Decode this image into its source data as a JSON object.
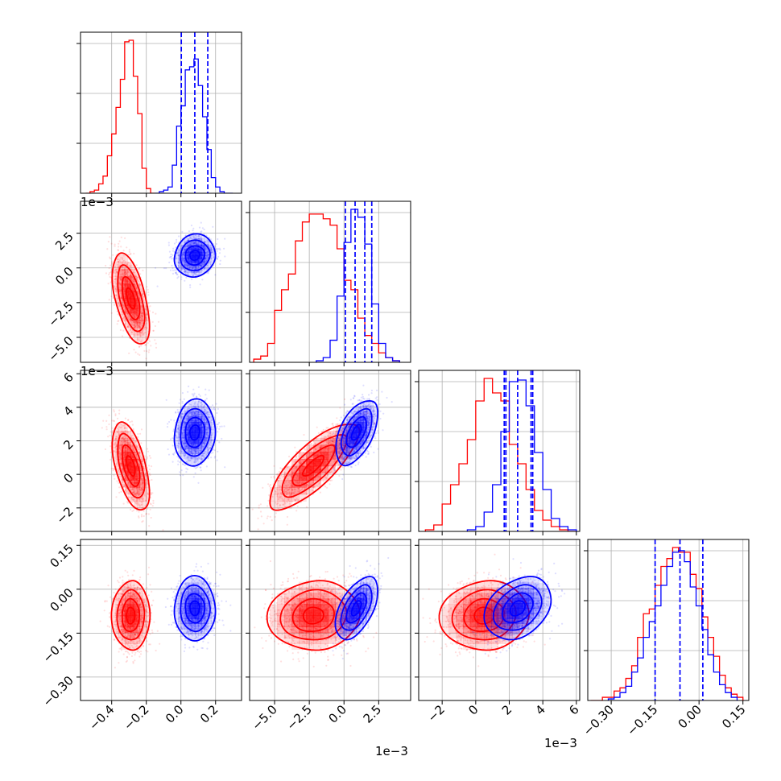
{
  "chart_data": {
    "type": "corner",
    "title": "",
    "parameters": [
      {
        "name": "",
        "range": [
          -0.58,
          0.35
        ],
        "ticks": [
          -0.4,
          -0.2,
          0.0,
          0.2
        ],
        "tick_labels": [
          "−0.4",
          "−0.2",
          "0.0",
          "0.2"
        ],
        "offset_text": ""
      },
      {
        "name": "",
        "range": [
          -0.0068,
          0.0048
        ],
        "ticks": [
          -0.005,
          -0.0025,
          0.0,
          0.0025
        ],
        "tick_labels": [
          "−5.0",
          "−2.5",
          "0.0",
          "2.5"
        ],
        "offset_text": "1e−3"
      },
      {
        "name": "",
        "range": [
          -0.0034,
          0.0062
        ],
        "ticks": [
          -0.002,
          0.0,
          0.002,
          0.004,
          0.006
        ],
        "tick_labels": [
          "−2",
          "0",
          "2",
          "4",
          "6"
        ],
        "offset_text": "1e−3"
      },
      {
        "name": "",
        "range": [
          -0.38,
          0.17
        ],
        "ticks": [
          -0.3,
          -0.15,
          0.0,
          0.15
        ],
        "tick_labels": [
          "−0.30",
          "−0.15",
          "0.00",
          "0.15"
        ],
        "offset_text": ""
      }
    ],
    "series": [
      {
        "name": "",
        "color": "#ff0000",
        "mean": [
          -0.29,
          -0.0022,
          0.0005,
          -0.09
        ],
        "std": [
          0.05,
          0.0015,
          0.0012,
          0.055
        ],
        "correlation": {
          "0-1": -0.55,
          "0-2": -0.55,
          "0-3": 0.0,
          "1-2": 0.8,
          "1-3": 0.05,
          "2-3": 0.05
        },
        "histograms": [
          {
            "edges": [
              -0.55,
              -0.525,
              -0.5,
              -0.475,
              -0.45,
              -0.425,
              -0.4,
              -0.375,
              -0.35,
              -0.325,
              -0.3,
              -0.275,
              -0.25,
              -0.225,
              -0.2,
              -0.175,
              -0.15
            ],
            "counts": [
              0,
              1,
              2,
              6,
              11,
              24,
              38,
              55,
              73,
              97,
              98,
              75,
              51,
              16,
              3,
              0
            ]
          },
          {
            "edges": [
              -0.0065,
              -0.006,
              -0.0055,
              -0.005,
              -0.0045,
              -0.004,
              -0.0035,
              -0.003,
              -0.0025,
              -0.002,
              -0.0015,
              -0.001,
              -0.0005,
              0.0,
              0.0005,
              0.001,
              0.0015,
              0.002,
              0.0025,
              0.003,
              0.0035,
              0.004
            ],
            "counts": [
              2,
              4,
              12,
              33,
              46,
              56,
              77,
              89,
              94,
              94,
              91,
              87,
              72,
              52,
              46,
              28,
              17,
              12,
              6,
              3,
              1
            ]
          },
          {
            "edges": [
              -0.003,
              -0.0025,
              -0.002,
              -0.0015,
              -0.001,
              -0.0005,
              0.0,
              0.0005,
              0.001,
              0.0015,
              0.002,
              0.0025,
              0.003,
              0.0035,
              0.004,
              0.0045,
              0.005,
              0.0055,
              0.006
            ],
            "counts": [
              1,
              4,
              17,
              29,
              42,
              57,
              81,
              95,
              86,
              81,
              54,
              42,
              26,
              13,
              7,
              3,
              1,
              0
            ]
          },
          {
            "edges": [
              -0.37,
              -0.35,
              -0.33,
              -0.31,
              -0.29,
              -0.27,
              -0.25,
              -0.23,
              -0.21,
              -0.19,
              -0.17,
              -0.15,
              -0.13,
              -0.11,
              -0.09,
              -0.07,
              -0.05,
              -0.03,
              -0.01,
              0.01,
              0.03,
              0.05,
              0.07,
              0.09,
              0.11,
              0.13,
              0.15
            ],
            "counts": [
              0,
              0,
              2,
              2,
              6,
              8,
              14,
              22,
              40,
              55,
              58,
              73,
              85,
              90,
              97,
              94,
              94,
              80,
              71,
              53,
              40,
              28,
              16,
              8,
              4,
              2
            ]
          }
        ],
        "quantile_lines": []
      },
      {
        "name": "",
        "color": "#0000ff",
        "mean": [
          0.08,
          0.0009,
          0.0025,
          -0.065
        ],
        "std": [
          0.055,
          0.0007,
          0.0009,
          0.05
        ],
        "correlation": {
          "0-1": 0.1,
          "0-2": 0.1,
          "0-3": 0.0,
          "1-2": 0.55,
          "1-3": 0.55,
          "2-3": 0.3
        },
        "histograms": [
          {
            "edges": [
              -0.15,
              -0.125,
              -0.1,
              -0.075,
              -0.05,
              -0.025,
              0.0,
              0.025,
              0.05,
              0.075,
              0.1,
              0.125,
              0.15,
              0.175,
              0.2,
              0.225,
              0.25,
              0.275,
              0.3
            ],
            "counts": [
              0,
              1,
              2,
              4,
              18,
              43,
              56,
              79,
              81,
              86,
              69,
              49,
              28,
              10,
              4,
              1,
              0,
              0
            ]
          },
          {
            "edges": [
              -0.002,
              -0.0015,
              -0.001,
              -0.0005,
              0.0,
              0.0005,
              0.001,
              0.0015,
              0.002,
              0.0025,
              0.003,
              0.0035,
              0.004
            ],
            "counts": [
              1,
              3,
              14,
              42,
              76,
              97,
              92,
              75,
              37,
              12,
              3,
              1
            ]
          },
          {
            "edges": [
              -0.0005,
              0.0,
              0.0005,
              0.001,
              0.0015,
              0.002,
              0.0025,
              0.003,
              0.0035,
              0.004,
              0.0045,
              0.005,
              0.0055,
              0.006
            ],
            "counts": [
              1,
              3,
              12,
              29,
              62,
              93,
              94,
              78,
              49,
              26,
              8,
              3,
              1
            ]
          },
          {
            "edges": [
              -0.31,
              -0.29,
              -0.27,
              -0.25,
              -0.23,
              -0.21,
              -0.19,
              -0.17,
              -0.15,
              -0.13,
              -0.11,
              -0.09,
              -0.07,
              -0.05,
              -0.03,
              -0.01,
              0.01,
              0.03,
              0.05,
              0.07,
              0.09,
              0.11,
              0.13
            ],
            "counts": [
              1,
              2,
              5,
              9,
              18,
              27,
              40,
              50,
              60,
              73,
              85,
              94,
              95,
              88,
              72,
              60,
              45,
              29,
              18,
              10,
              5,
              2
            ]
          }
        ],
        "quantile_lines": [
          [
            0.002,
            0.08,
            0.155
          ],
          [
            0.0001,
            0.0008,
            0.0015,
            0.002
          ],
          [
            0.0017,
            0.0018,
            0.0025,
            0.0033,
            0.0034
          ],
          [
            -0.15,
            -0.065,
            0.013
          ]
        ]
      }
    ],
    "contour_levels": [
      0.12,
      0.4,
      0.7,
      0.9
    ],
    "grid": true,
    "legend": "none",
    "scatter_points_per_panel": 1200
  }
}
